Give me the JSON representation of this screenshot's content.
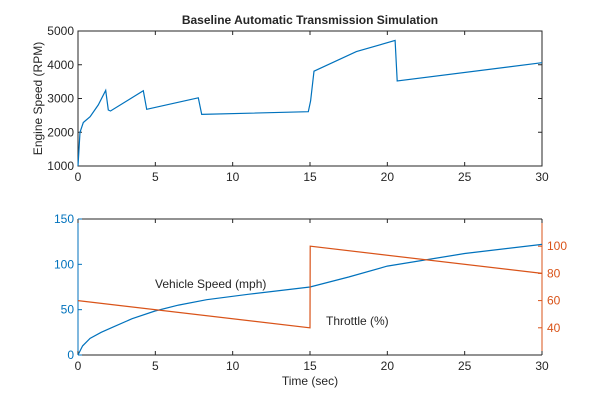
{
  "chart_data": [
    {
      "type": "line",
      "title": "Baseline Automatic Transmission Simulation",
      "xlabel": "",
      "ylabel": "Engine Speed (RPM)",
      "xlim": [
        0,
        30
      ],
      "ylim": [
        1000,
        5000
      ],
      "xticks": [
        "0",
        "5",
        "10",
        "15",
        "20",
        "25",
        "30"
      ],
      "yticks": [
        "1000",
        "2000",
        "3000",
        "4000",
        "5000"
      ],
      "series": [
        {
          "name": "Engine Speed",
          "color": "#0072BD",
          "x": [
            0,
            0.13,
            0.34,
            0.78,
            1.31,
            1.79,
            1.96,
            2.1,
            4.22,
            4.44,
            7.78,
            8.0,
            14.89,
            15.04,
            15.26,
            18.0,
            20.5,
            20.64,
            30
          ],
          "y": [
            1000,
            2000,
            2290,
            2460,
            2810,
            3240,
            2660,
            2630,
            3230,
            2680,
            3020,
            2530,
            2610,
            2930,
            3810,
            4390,
            4720,
            3520,
            4060
          ]
        }
      ]
    },
    {
      "type": "line",
      "xlabel": "Time (sec)",
      "xlim": [
        0,
        30
      ],
      "ylim": [
        0,
        150
      ],
      "ylim_right": [
        20,
        120
      ],
      "xticks": [
        "0",
        "5",
        "10",
        "15",
        "20",
        "25",
        "30"
      ],
      "yticks": [
        "0",
        "50",
        "100",
        "150"
      ],
      "yticks_right": [
        "40",
        "60",
        "80",
        "100"
      ],
      "series": [
        {
          "name": "Vehicle Speed (mph)",
          "axis": "left",
          "color": "#0072BD",
          "x": [
            0,
            0.3,
            0.78,
            1.5,
            2.28,
            3.5,
            4.98,
            6.5,
            8.32,
            11,
            15,
            17.5,
            20,
            25,
            30
          ],
          "y": [
            0,
            10,
            18.4,
            25,
            31,
            40,
            48.5,
            55,
            61,
            67,
            75,
            86,
            98,
            112,
            122
          ]
        },
        {
          "name": "Throttle (%)",
          "axis": "right",
          "color": "#D95319",
          "x": [
            0,
            15,
            15.01,
            30
          ],
          "y": [
            60,
            40,
            100,
            80
          ]
        }
      ]
    }
  ]
}
